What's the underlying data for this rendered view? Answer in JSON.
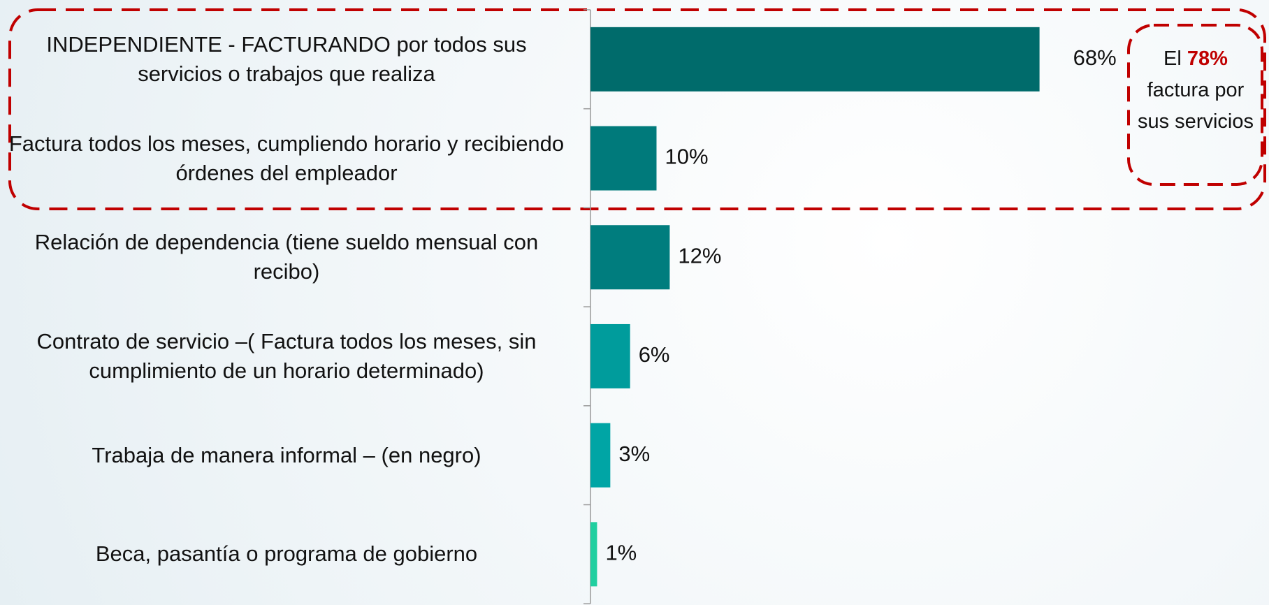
{
  "chart_data": {
    "type": "hbar",
    "categories": [
      "INDEPENDIENTE -  FACTURANDO por todos sus servicios o trabajos que realiza",
      "Factura todos los meses, cumpliendo horario y recibiendo órdenes del empleador",
      "Relación de dependencia (tiene sueldo mensual con recibo)",
      "Contrato de servicio –( Factura todos los meses, sin cumplimiento de un horario determinado)",
      "Trabaja de manera informal – (en negro)",
      "Beca, pasantía o programa de gobierno"
    ],
    "values": [
      68,
      10,
      12,
      6,
      3,
      1
    ],
    "value_labels": [
      "68%",
      "10%",
      "12%",
      "6%",
      "3%",
      "1%"
    ],
    "colors": [
      "#006b6b",
      "#007a7b",
      "#007d7e",
      "#009c9c",
      "#00a5a5",
      "#20cfa0"
    ],
    "annotation": {
      "prefix": "El",
      "highlight": "78%",
      "text": "factura por sus servicios"
    }
  }
}
